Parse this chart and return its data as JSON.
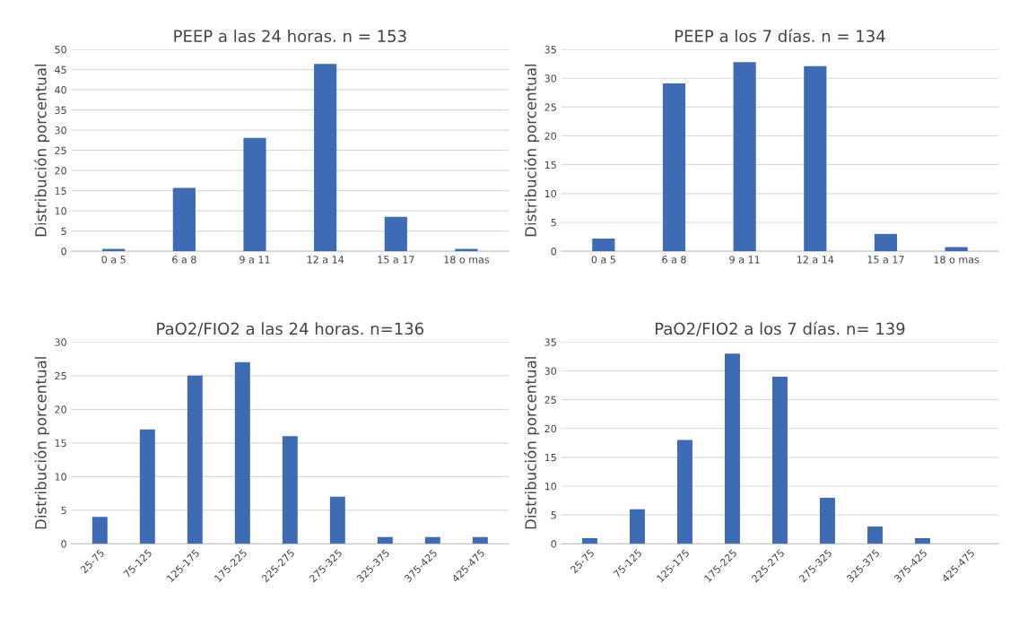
{
  "chart_data": [
    {
      "type": "bar",
      "title": "PEEP a las 24 horas. n = 153",
      "ylabel": "Distribución porcentual",
      "categories": [
        "0 a 5",
        "6 a 8",
        "9 a 11",
        "12 a 14",
        "15 a 17",
        "18 o mas"
      ],
      "values": [
        0.6,
        15.7,
        28.1,
        46.4,
        8.5,
        0.6
      ],
      "color": "#3d6cb5",
      "ylim": [
        0,
        50
      ],
      "yticks": [
        0,
        5,
        10,
        15,
        20,
        25,
        30,
        35,
        40,
        45,
        50
      ],
      "grid": "y"
    },
    {
      "type": "bar",
      "title": "PEEP a los 7 días. n = 134",
      "ylabel": "Distribución porcentual",
      "categories": [
        "0 a 5",
        "6 a 8",
        "9 a 11",
        "12 a 14",
        "15 a 17",
        "18 o mas"
      ],
      "values": [
        2.2,
        29.1,
        32.8,
        32.1,
        3.0,
        0.7
      ],
      "color": "#3d6cb5",
      "ylim": [
        0,
        35
      ],
      "yticks": [
        0,
        5,
        10,
        15,
        20,
        25,
        30,
        35
      ],
      "grid": "y"
    },
    {
      "type": "bar",
      "title": "PaO2/FIO2 a las 24 horas. n=136",
      "ylabel": "Distribución porcentual",
      "categories": [
        "25-75",
        "75-125",
        "125-175",
        "175-225",
        "225-275",
        "275-325",
        "325-375",
        "375-425",
        "425-475"
      ],
      "values": [
        4,
        17,
        25,
        27,
        16,
        7,
        1,
        1,
        1
      ],
      "color": "#3d6cb5",
      "ylim": [
        0,
        30
      ],
      "yticks": [
        0,
        5,
        10,
        15,
        20,
        25,
        30
      ],
      "grid": "y"
    },
    {
      "type": "bar",
      "title": "PaO2/FIO2 a los 7 días. n= 139",
      "ylabel": "Distribución porcentual",
      "categories": [
        "25-75",
        "75-125",
        "125-175",
        "175-225",
        "225-275",
        "275-325",
        "325-375",
        "375-425",
        "425-475"
      ],
      "values": [
        1,
        6,
        18,
        33,
        29,
        8,
        3,
        1,
        0
      ],
      "color": "#3d6cb5",
      "ylim": [
        0,
        35
      ],
      "yticks": [
        0,
        5,
        10,
        15,
        20,
        25,
        30,
        35
      ],
      "grid": "y"
    }
  ]
}
